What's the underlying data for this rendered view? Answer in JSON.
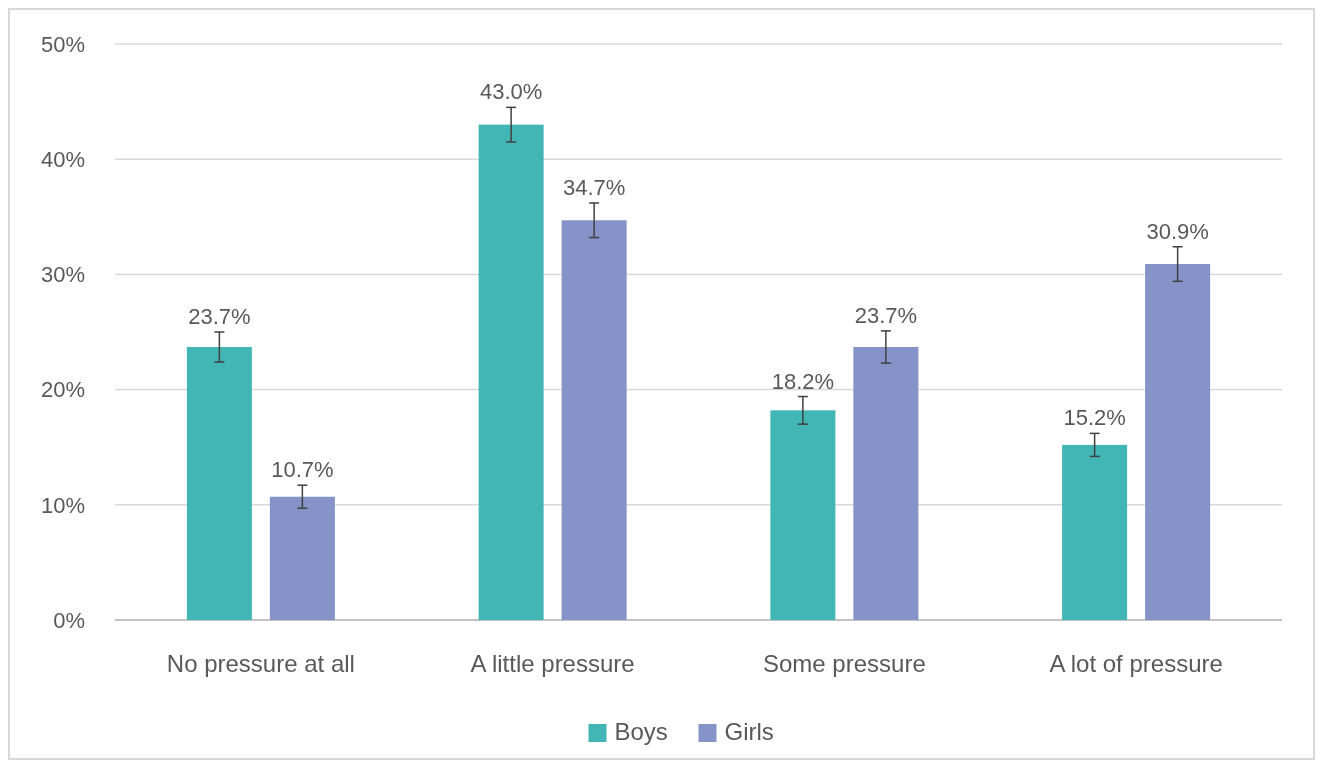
{
  "chart_data": {
    "type": "bar",
    "categories": [
      "No pressure at all",
      "A little pressure",
      "Some pressure",
      "A lot of pressure"
    ],
    "series": [
      {
        "name": "Boys",
        "color": "#41b6b5",
        "values": [
          23.7,
          43.0,
          18.2,
          15.2
        ],
        "errors": [
          1.3,
          1.5,
          1.2,
          1.0
        ]
      },
      {
        "name": "Girls",
        "color": "#8593c9",
        "values": [
          10.7,
          34.7,
          23.7,
          30.9
        ],
        "errors": [
          1.0,
          1.5,
          1.4,
          1.5
        ]
      }
    ],
    "ylim": [
      0,
      50
    ],
    "yticks": [
      {
        "value": 0,
        "label": "0%"
      },
      {
        "value": 10,
        "label": "10%"
      },
      {
        "value": 20,
        "label": "20%"
      },
      {
        "value": 30,
        "label": "30%"
      },
      {
        "value": 40,
        "label": "40%"
      },
      {
        "value": 50,
        "label": "50%"
      }
    ],
    "value_labels": [
      [
        "23.7%",
        "43.0%",
        "18.2%",
        "15.2%"
      ],
      [
        "10.7%",
        "34.7%",
        "23.7%",
        "30.9%"
      ]
    ],
    "grid": "y",
    "legend": "bottom"
  }
}
